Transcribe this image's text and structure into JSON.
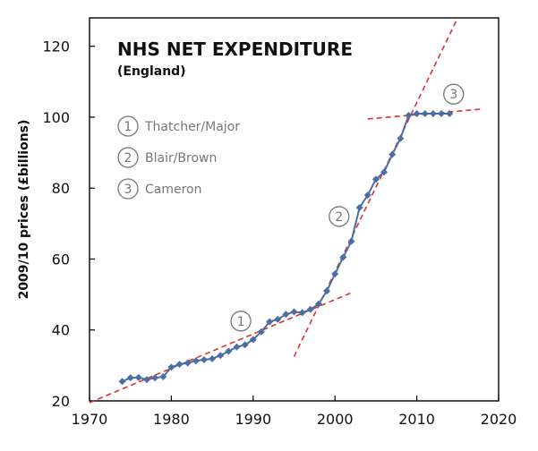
{
  "chart_data": {
    "type": "line",
    "title": "NHS NET EXPENDITURE",
    "subtitle": "(England)",
    "xlabel": "",
    "ylabel": "2009/10 prices (£billions)",
    "xlim": [
      1970,
      2020
    ],
    "ylim": [
      20,
      128
    ],
    "xticks": [
      1970,
      1980,
      1990,
      2000,
      2010,
      2020
    ],
    "yticks": [
      20,
      40,
      60,
      80,
      100,
      120
    ],
    "grid": false,
    "series": [
      {
        "color": "#4a6fa5",
        "marker": "diamond",
        "x": [
          1974,
          1975,
          1976,
          1977,
          1978,
          1979,
          1980,
          1981,
          1982,
          1983,
          1984,
          1985,
          1986,
          1987,
          1988,
          1989,
          1990,
          1991,
          1992,
          1993,
          1994,
          1995,
          1996,
          1997,
          1998,
          1999,
          2000,
          2001,
          2002,
          2003,
          2004,
          2005,
          2006,
          2007,
          2008,
          2009,
          2010,
          2011,
          2012,
          2013,
          2014
        ],
        "y": [
          25.5,
          26.5,
          26.6,
          26,
          26.5,
          26.8,
          29.5,
          30.3,
          30.7,
          31.3,
          31.6,
          31.9,
          32.8,
          34,
          35.2,
          35.8,
          37.3,
          39.5,
          42.3,
          43,
          44.4,
          45.1,
          44.9,
          45.8,
          47.3,
          51,
          55.8,
          60.5,
          65,
          74.5,
          78,
          82.5,
          84.5,
          89.5,
          94,
          100.5,
          101,
          101,
          101,
          101,
          101
        ]
      }
    ],
    "trendlines": [
      {
        "label": "1",
        "color": "#e03030",
        "from": [
          1970,
          19.5
        ],
        "to": [
          2002,
          50.5
        ]
      },
      {
        "label": "2",
        "color": "#e03030",
        "from": [
          1995,
          32.5
        ],
        "to": [
          2015,
          128
        ]
      },
      {
        "label": "3",
        "color": "#e03030",
        "from": [
          2004,
          99.5
        ],
        "to": [
          2018,
          102.3
        ]
      }
    ],
    "badges": [
      {
        "label": "1",
        "x": 1988.5,
        "y": 42.5
      },
      {
        "label": "2",
        "x": 2000.5,
        "y": 72
      },
      {
        "label": "3",
        "x": 2014.5,
        "y": 106.5
      }
    ],
    "legend": {
      "placement": "top-left",
      "entries": [
        {
          "badge": "1",
          "text": "Thatcher/Major"
        },
        {
          "badge": "2",
          "text": "Blair/Brown"
        },
        {
          "badge": "3",
          "text": "Cameron"
        }
      ]
    },
    "colors": {
      "series": "#4a6fa5",
      "trend": "#e03030",
      "badge": "#777777"
    }
  }
}
